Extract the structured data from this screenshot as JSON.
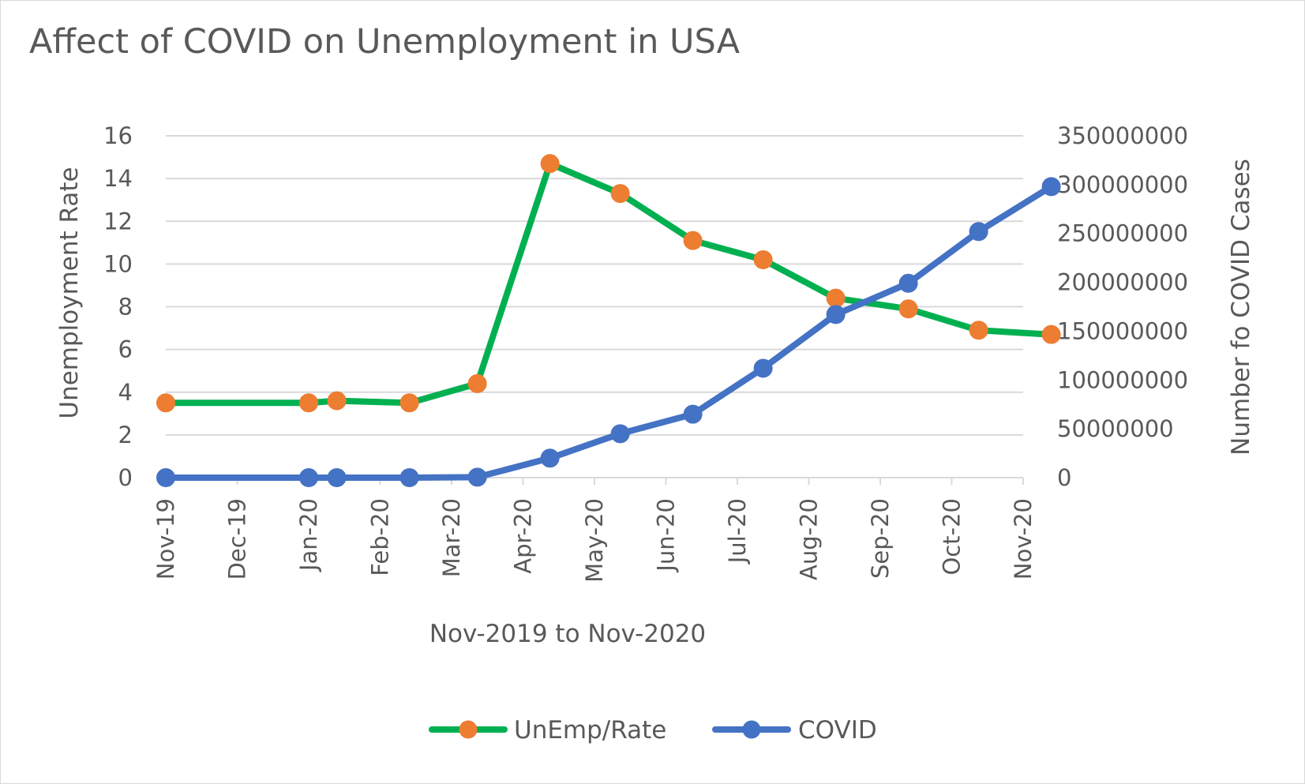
{
  "chart_data": {
    "type": "line",
    "title": "Affect of COVID on Unemployment in USA",
    "xlabel": "Nov-2019 to Nov-2020",
    "ylabel": "Unemployment Rate",
    "y2label": "Number fo COVID Cases",
    "x_axis": {
      "type": "date",
      "range": [
        "2019-11-01",
        "2020-11-01"
      ],
      "tick_labels": [
        "Nov-19",
        "Dec-19",
        "Jan-20",
        "Feb-20",
        "Mar-20",
        "Apr-20",
        "May-20",
        "Jun-20",
        "Jul-20",
        "Aug-20",
        "Sep-20",
        "Oct-20",
        "Nov-20"
      ]
    },
    "ylim": [
      0,
      16
    ],
    "yticks": [
      "0",
      "2",
      "4",
      "6",
      "8",
      "10",
      "12",
      "14",
      "16"
    ],
    "y2lim": [
      0,
      350000000
    ],
    "y2ticks": [
      "0",
      "50000000",
      "100000000",
      "150000000",
      "200000000",
      "250000000",
      "300000000",
      "350000000"
    ],
    "grid": "horizontal",
    "legend_position": "bottom",
    "series": [
      {
        "name": "UnEmp/Rate",
        "axis": "left",
        "line_color": "#00b050",
        "marker_color": "#ed7d31",
        "x": [
          "2019-11-01",
          "2020-01-01",
          "2020-01-13",
          "2020-02-13",
          "2020-03-13",
          "2020-04-13",
          "2020-05-13",
          "2020-06-13",
          "2020-07-13",
          "2020-08-13",
          "2020-09-13",
          "2020-10-13",
          "2020-11-13"
        ],
        "values": [
          3.5,
          3.5,
          3.6,
          3.5,
          4.4,
          14.7,
          13.3,
          11.1,
          10.2,
          8.4,
          7.9,
          6.9,
          6.7
        ]
      },
      {
        "name": "COVID",
        "axis": "right",
        "line_color": "#4472c4",
        "marker_color": "#4472c4",
        "x": [
          "2019-11-01",
          "2020-01-01",
          "2020-01-13",
          "2020-02-13",
          "2020-03-13",
          "2020-04-13",
          "2020-05-13",
          "2020-06-13",
          "2020-07-13",
          "2020-08-13",
          "2020-09-13",
          "2020-10-13",
          "2020-11-13"
        ],
        "values": [
          0,
          0,
          0,
          0,
          500000,
          20000000,
          45000000,
          65000000,
          112000000,
          167000000,
          199000000,
          252000000,
          298000000
        ]
      }
    ]
  }
}
